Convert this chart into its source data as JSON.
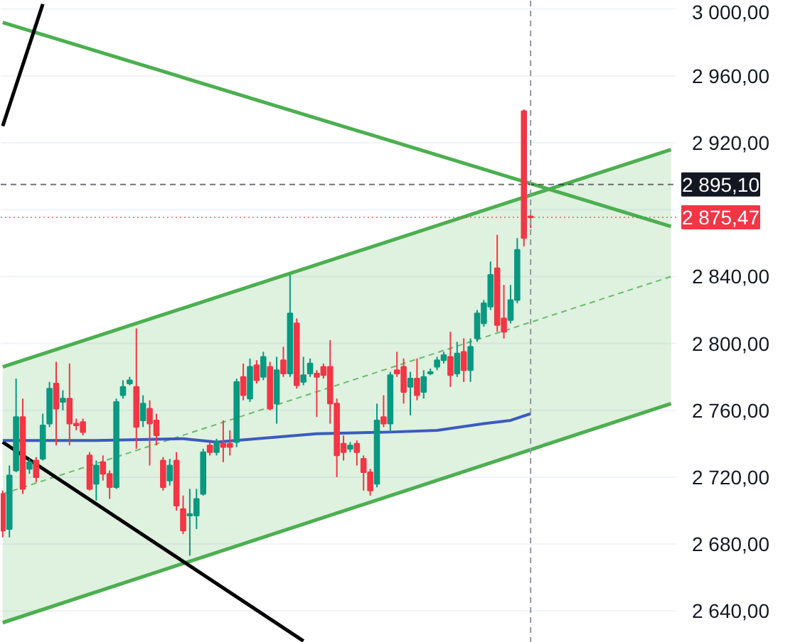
{
  "chart_data": {
    "type": "candlestick",
    "categories": [
      null,
      null,
      null,
      null,
      null,
      null,
      null,
      null,
      null,
      null,
      null,
      null,
      null,
      null,
      null,
      null,
      null,
      null,
      null,
      null,
      null,
      null,
      null,
      null,
      null,
      null,
      null,
      null,
      null,
      null,
      null,
      null,
      null,
      null,
      null,
      null,
      null,
      null,
      null,
      null,
      null,
      null,
      null,
      null,
      null,
      null,
      null,
      null,
      null,
      null,
      null,
      null,
      null,
      null,
      null,
      null,
      null,
      null,
      null,
      null,
      null,
      null,
      null,
      null,
      null,
      null,
      null,
      null,
      null,
      null,
      null,
      null,
      null,
      null,
      null,
      null,
      null,
      null,
      null,
      null,
      null,
      null,
      null,
      null,
      null,
      null,
      null,
      null,
      null,
      null,
      null,
      null,
      null,
      null,
      null,
      null,
      null,
      null,
      null,
      null,
      null
    ],
    "ohlc": [
      [
        2710,
        2712,
        2684,
        2688
      ],
      [
        2689,
        2727,
        2684,
        2721
      ],
      [
        2724,
        2779,
        2723,
        2756
      ],
      [
        2756,
        2767,
        2710,
        2713
      ],
      [
        2725,
        2731,
        2722,
        2729
      ],
      [
        2730,
        2732,
        2717,
        2720
      ],
      [
        2731,
        2758,
        2730,
        2751
      ],
      [
        2752,
        2777,
        2750,
        2773
      ],
      [
        2776,
        2789,
        2739,
        2761
      ],
      [
        2765,
        2772,
        2760,
        2767
      ],
      [
        2767,
        2788,
        2739,
        2752
      ],
      [
        2752,
        2755,
        2748,
        2751
      ],
      [
        2753,
        2755,
        2745,
        2747
      ],
      [
        2733,
        2735,
        2712,
        2713
      ],
      [
        2716,
        2730,
        2706,
        2727
      ],
      [
        2729,
        2733,
        2718,
        2722
      ],
      [
        2722,
        2724,
        2707,
        2714
      ],
      [
        2714,
        2767,
        2713,
        2765
      ],
      [
        2769,
        2778,
        2767,
        2774
      ],
      [
        2776,
        2780,
        2775,
        2778
      ],
      [
        2774,
        2809,
        2737,
        2750
      ],
      [
        2754,
        2769,
        2750,
        2764
      ],
      [
        2761,
        2766,
        2727,
        2752
      ],
      [
        2754,
        2758,
        2739,
        2745
      ],
      [
        2730,
        2732,
        2712,
        2714
      ],
      [
        2718,
        2731,
        2715,
        2727
      ],
      [
        2730,
        2735,
        2700,
        2703
      ],
      [
        2701,
        2709,
        2686,
        2688
      ],
      [
        2697,
        2713,
        2673,
        2698
      ],
      [
        2697,
        2713,
        2689,
        2707
      ],
      [
        2710,
        2737,
        2709,
        2735
      ],
      [
        2739,
        2741,
        2733,
        2735
      ],
      [
        2735,
        2743,
        2733,
        2741
      ],
      [
        2740,
        2754,
        2729,
        2738
      ],
      [
        2740,
        2748,
        2733,
        2738
      ],
      [
        2741,
        2779,
        2738,
        2777
      ],
      [
        2780,
        2788,
        2766,
        2769
      ],
      [
        2767,
        2791,
        2765,
        2786
      ],
      [
        2787,
        2790,
        2776,
        2778
      ],
      [
        2780,
        2795,
        2778,
        2792
      ],
      [
        2786,
        2789,
        2760,
        2761
      ],
      [
        2764,
        2792,
        2752,
        2784
      ],
      [
        2790,
        2798,
        2780,
        2782
      ],
      [
        2782,
        2841,
        2780,
        2818
      ],
      [
        2812,
        2815,
        2773,
        2775
      ],
      [
        2777,
        2792,
        2775,
        2781
      ],
      [
        2782,
        2791,
        2780,
        2788
      ],
      [
        2782,
        2784,
        2756,
        2780
      ],
      [
        2786,
        2788,
        2779,
        2781
      ],
      [
        2786,
        2802,
        2752,
        2764
      ],
      [
        2764,
        2767,
        2720,
        2733
      ],
      [
        2740,
        2745,
        2730,
        2735
      ],
      [
        2737,
        2741,
        2735,
        2739
      ],
      [
        2740,
        2742,
        2727,
        2735
      ],
      [
        2731,
        2733,
        2712,
        2723
      ],
      [
        2723,
        2725,
        2709,
        2712
      ],
      [
        2716,
        2764,
        2714,
        2754
      ],
      [
        2756,
        2769,
        2750,
        2752
      ],
      [
        2752,
        2783,
        2747,
        2781
      ],
      [
        2784,
        2795,
        2780,
        2782
      ],
      [
        2786,
        2791,
        2764,
        2771
      ],
      [
        2774,
        2783,
        2757,
        2779
      ],
      [
        2779,
        2791,
        2766,
        2769
      ],
      [
        2771,
        2784,
        2767,
        2780
      ],
      [
        2782,
        2785,
        2781,
        2783
      ],
      [
        2786,
        2792,
        2784,
        2790
      ],
      [
        2790,
        2795,
        2788,
        2793
      ],
      [
        2792,
        2807,
        2774,
        2781
      ],
      [
        2782,
        2801,
        2780,
        2794
      ],
      [
        2795,
        2803,
        2777,
        2784
      ],
      [
        2784,
        2803,
        2777,
        2798
      ],
      [
        2803,
        2820,
        2801,
        2818
      ],
      [
        2812,
        2826,
        2810,
        2824
      ],
      [
        2822,
        2849,
        2820,
        2841
      ],
      [
        2845,
        2865,
        2807,
        2811
      ],
      [
        2815,
        2835,
        2803,
        2807
      ],
      [
        2814,
        2835,
        2812,
        2826
      ],
      [
        2826,
        2863,
        2824,
        2856
      ],
      [
        2939,
        2940,
        2858,
        2863
      ],
      [
        2876,
        2877,
        2869,
        2875.47
      ],
      null,
      null,
      null,
      null,
      null,
      null,
      null,
      null,
      null,
      null,
      null,
      null,
      null,
      null,
      null,
      null,
      null,
      null,
      null,
      null,
      null
    ],
    "colors": [
      "#f23645",
      "#089981",
      "#089981",
      "#f23645",
      "#089981",
      "#f23645",
      "#089981",
      "#089981",
      "#f23645",
      "#089981",
      "#f23645",
      "#f23645",
      "#f23645",
      "#f23645",
      "#089981",
      "#f23645",
      "#f23645",
      "#089981",
      "#089981",
      "#089981",
      "#f23645",
      "#089981",
      "#f23645",
      "#f23645",
      "#f23645",
      "#089981",
      "#f23645",
      "#f23645",
      "#089981",
      "#089981",
      "#089981",
      "#f23645",
      "#089981",
      "#f23645",
      "#f23645",
      "#089981",
      "#f23645",
      "#089981",
      "#f23645",
      "#089981",
      "#f23645",
      "#089981",
      "#f23645",
      "#089981",
      "#f23645",
      "#089981",
      "#089981",
      "#f23645",
      "#f23645",
      "#f23645",
      "#f23645",
      "#f23645",
      "#089981",
      "#f23645",
      "#f23645",
      "#f23645",
      "#089981",
      "#f23645",
      "#089981",
      "#f23645",
      "#f23645",
      "#089981",
      "#f23645",
      "#089981",
      "#089981",
      "#089981",
      "#089981",
      "#f23645",
      "#089981",
      "#f23645",
      "#089981",
      "#089981",
      "#089981",
      "#089981",
      "#f23645",
      "#f23645",
      "#089981",
      "#089981",
      "#f23645",
      "#f23645",
      null,
      null,
      null,
      null,
      null,
      null,
      null,
      null,
      null,
      null,
      null,
      null,
      null,
      null,
      null,
      null,
      null,
      null,
      null,
      null,
      null
    ],
    "series": [
      {
        "type": "line",
        "color": "#4caf50",
        "line_style": "dashed",
        "values": [
          2710,
          null,
          null,
          null,
          null,
          null,
          null,
          null,
          null,
          null,
          null,
          null,
          null,
          null,
          null,
          null,
          null,
          null,
          null,
          null,
          null,
          null,
          null,
          null,
          null,
          null,
          null,
          null,
          null,
          null,
          null,
          null,
          null,
          null,
          null,
          null,
          null,
          null,
          null,
          null,
          null,
          null,
          null,
          null,
          null,
          null,
          null,
          null,
          null,
          null,
          null,
          null,
          null,
          null,
          null,
          null,
          null,
          null,
          null,
          null,
          null,
          null,
          null,
          null,
          null,
          null,
          null,
          null,
          null,
          null,
          null,
          null,
          null,
          null,
          null,
          null,
          null,
          null,
          null,
          null,
          null,
          null,
          null,
          null,
          null,
          null,
          null,
          null,
          null,
          null,
          null,
          null,
          null,
          null,
          null,
          null,
          null,
          null,
          null,
          null,
          2840
        ],
        "lower": [
          2633,
          null,
          null,
          null,
          null,
          null,
          null,
          null,
          null,
          null,
          null,
          null,
          null,
          null,
          null,
          null,
          null,
          null,
          null,
          null,
          null,
          null,
          null,
          null,
          null,
          null,
          null,
          null,
          null,
          null,
          null,
          null,
          null,
          null,
          null,
          null,
          null,
          null,
          null,
          null,
          null,
          null,
          null,
          null,
          null,
          null,
          null,
          null,
          null,
          null,
          null,
          null,
          null,
          null,
          null,
          null,
          null,
          null,
          null,
          null,
          null,
          null,
          null,
          null,
          null,
          null,
          null,
          null,
          null,
          null,
          null,
          null,
          null,
          null,
          null,
          null,
          null,
          null,
          null,
          null,
          null,
          null,
          null,
          null,
          null,
          null,
          null,
          null,
          null,
          null,
          null,
          null,
          null,
          null,
          null,
          null,
          null,
          null,
          null,
          null,
          2764
        ],
        "upper": [
          2786,
          null,
          null,
          null,
          null,
          null,
          null,
          null,
          null,
          null,
          null,
          null,
          null,
          null,
          null,
          null,
          null,
          null,
          null,
          null,
          null,
          null,
          null,
          null,
          null,
          null,
          null,
          null,
          null,
          null,
          null,
          null,
          null,
          null,
          null,
          null,
          null,
          null,
          null,
          null,
          null,
          null,
          null,
          null,
          null,
          null,
          null,
          null,
          null,
          null,
          null,
          null,
          null,
          null,
          null,
          null,
          null,
          null,
          null,
          null,
          null,
          null,
          null,
          null,
          null,
          null,
          null,
          null,
          null,
          null,
          null,
          null,
          null,
          null,
          null,
          null,
          null,
          null,
          null,
          null,
          null,
          null,
          null,
          null,
          null,
          null,
          null,
          null,
          null,
          null,
          null,
          null,
          null,
          null,
          null,
          null,
          null,
          null,
          null,
          null,
          2916
        ]
      },
      {
        "type": "line",
        "color": "#4caf50",
        "line_style": "solid",
        "values": [
          2786,
          null,
          null,
          null,
          null,
          null,
          null,
          null,
          null,
          null,
          null,
          null,
          null,
          null,
          null,
          null,
          null,
          null,
          null,
          null,
          null,
          null,
          null,
          null,
          null,
          null,
          null,
          null,
          null,
          null,
          null,
          null,
          null,
          null,
          null,
          null,
          null,
          null,
          null,
          null,
          null,
          null,
          null,
          null,
          null,
          null,
          null,
          null,
          null,
          null,
          null,
          null,
          null,
          null,
          null,
          null,
          null,
          null,
          null,
          null,
          null,
          null,
          null,
          null,
          null,
          null,
          null,
          null,
          null,
          null,
          null,
          null,
          null,
          null,
          null,
          null,
          null,
          null,
          null,
          null,
          null,
          null,
          null,
          null,
          null,
          null,
          null,
          null,
          null,
          null,
          null,
          null,
          null,
          null,
          null,
          null,
          null,
          null,
          null,
          null,
          2916
        ]
      },
      {
        "type": "line",
        "color": "#4caf50",
        "line_style": "solid",
        "values": [
          2633,
          null,
          null,
          null,
          null,
          null,
          null,
          null,
          null,
          null,
          null,
          null,
          null,
          null,
          null,
          null,
          null,
          null,
          null,
          null,
          null,
          null,
          null,
          null,
          null,
          null,
          null,
          null,
          null,
          null,
          null,
          null,
          null,
          null,
          null,
          null,
          null,
          null,
          null,
          null,
          null,
          null,
          null,
          null,
          null,
          null,
          null,
          null,
          null,
          null,
          null,
          null,
          null,
          null,
          null,
          null,
          null,
          null,
          null,
          null,
          null,
          null,
          null,
          null,
          null,
          null,
          null,
          null,
          null,
          null,
          null,
          null,
          null,
          null,
          null,
          null,
          null,
          null,
          null,
          null,
          null,
          null,
          null,
          null,
          null,
          null,
          null,
          null,
          null,
          null,
          null,
          null,
          null,
          null,
          null,
          null,
          null,
          null,
          null,
          null,
          2764
        ]
      },
      {
        "type": "line",
        "color": "#4caf50",
        "line_style": "solid",
        "values": [
          2992,
          null,
          null,
          null,
          null,
          null,
          null,
          null,
          null,
          null,
          null,
          null,
          null,
          null,
          null,
          null,
          null,
          null,
          null,
          null,
          null,
          null,
          null,
          null,
          null,
          null,
          null,
          null,
          null,
          null,
          null,
          null,
          null,
          null,
          null,
          null,
          null,
          null,
          null,
          null,
          null,
          null,
          null,
          null,
          null,
          null,
          null,
          null,
          null,
          null,
          null,
          null,
          null,
          null,
          null,
          null,
          null,
          null,
          null,
          null,
          null,
          null,
          null,
          null,
          null,
          null,
          null,
          null,
          null,
          null,
          null,
          null,
          null,
          null,
          null,
          null,
          null,
          null,
          null,
          null,
          null,
          null,
          null,
          null,
          null,
          null,
          null,
          null,
          null,
          null,
          null,
          null,
          null,
          null,
          null,
          null,
          null,
          null,
          null,
          null,
          2870
        ]
      },
      {
        "type": "line",
        "color": "#000000",
        "line_style": "solid",
        "values": [
          2930,
          null,
          null,
          null,
          null,
          null,
          3003,
          null,
          null,
          null,
          null,
          null,
          null,
          null,
          null,
          null,
          null,
          null,
          null,
          null,
          null,
          null,
          null,
          null,
          null,
          null,
          null,
          null,
          null,
          null,
          null,
          null,
          null,
          null,
          null,
          null,
          null,
          null,
          null,
          null,
          null,
          null,
          null,
          null,
          null,
          null,
          null,
          null,
          null,
          null,
          null,
          null,
          null,
          null,
          null,
          null,
          null,
          null,
          null,
          null,
          null,
          null,
          null,
          null,
          null,
          null,
          null,
          null,
          null,
          null,
          null,
          null,
          null,
          null,
          null,
          null,
          null,
          null,
          null,
          null,
          null,
          null,
          null,
          null,
          null,
          null,
          null,
          null,
          null,
          null,
          null,
          null,
          null,
          null,
          null,
          null,
          null,
          null,
          null,
          null,
          null
        ]
      },
      {
        "type": "line",
        "color": "#000000",
        "line_style": "solid",
        "values": [
          2741,
          null,
          null,
          null,
          null,
          null,
          null,
          null,
          null,
          null,
          null,
          null,
          null,
          null,
          null,
          null,
          null,
          null,
          null,
          null,
          null,
          null,
          null,
          null,
          null,
          null,
          null,
          null,
          null,
          null,
          null,
          null,
          null,
          null,
          null,
          null,
          null,
          null,
          null,
          null,
          null,
          null,
          null,
          null,
          null,
          2622,
          null,
          null,
          null,
          null,
          null,
          null,
          null,
          null,
          null,
          null,
          null,
          null,
          null,
          null,
          null,
          null,
          null,
          null,
          null,
          null,
          null,
          null,
          null,
          null,
          null,
          null,
          null,
          null,
          null,
          null,
          null,
          null,
          null,
          null,
          null,
          null,
          null,
          null,
          null,
          null,
          null,
          null,
          null,
          null,
          null,
          null,
          null,
          null,
          null,
          null,
          null,
          null,
          null,
          null,
          null
        ]
      },
      {
        "type": "line",
        "color": "#3a5bbf",
        "line_style": "solid",
        "values": [
          2742,
          null,
          null,
          null,
          null,
          null,
          null,
          null,
          null,
          null,
          null,
          null,
          null,
          null,
          2742,
          null,
          null,
          null,
          null,
          null,
          null,
          null,
          null,
          null,
          null,
          null,
          null,
          2743,
          null,
          null,
          null,
          null,
          2741,
          null,
          null,
          null,
          null,
          null,
          null,
          null,
          null,
          null,
          null,
          null,
          null,
          null,
          null,
          2746,
          null,
          null,
          null,
          null,
          null,
          null,
          null,
          null,
          null,
          null,
          2747,
          null,
          null,
          null,
          null,
          null,
          null,
          2748,
          null,
          null,
          null,
          null,
          null,
          null,
          2752,
          null,
          null,
          null,
          2754,
          null,
          null,
          2758,
          null,
          null,
          null,
          null,
          null,
          null,
          null,
          null,
          null,
          null,
          null,
          null,
          null,
          null,
          null,
          null,
          null,
          null,
          null,
          null,
          null
        ]
      }
    ],
    "ylim": [
      2621,
      3005
    ],
    "yticks": [
      {
        "value": 2640,
        "label": "2 640,00"
      },
      {
        "value": 2680,
        "label": "2 680,00"
      },
      {
        "value": 2720,
        "label": "2 720,00"
      },
      {
        "value": 2760,
        "label": "2 760,00"
      },
      {
        "value": 2800,
        "label": "2 800,00"
      },
      {
        "value": 2840,
        "label": "2 840,00"
      },
      {
        "value": 2880,
        "label": null
      },
      {
        "value": 2920,
        "label": "2 920,00"
      },
      {
        "value": 2960,
        "label": "2 960,00"
      },
      {
        "value": 3000,
        "label": "3 000,00"
      }
    ],
    "tick_labels": "y",
    "grid": "y",
    "ref_lines": [
      {
        "axis": "y",
        "value": 2895.1,
        "label": "2 895,10",
        "color": "#131722",
        "line_style": "dashed"
      },
      {
        "axis": "y",
        "value": 2875.47,
        "label": "2 875,47",
        "color": "#f23645",
        "line_style": "dotted"
      }
    ]
  }
}
